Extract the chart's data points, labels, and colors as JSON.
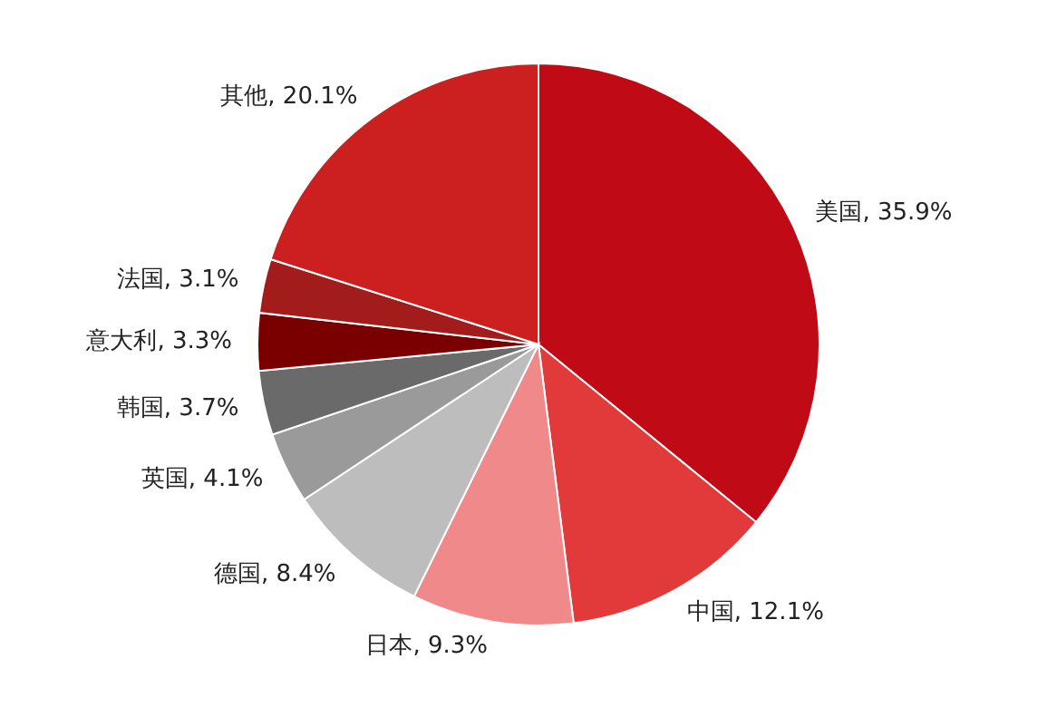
{
  "chart_data": {
    "type": "pie",
    "categories": [
      "美国",
      "中国",
      "日本",
      "德国",
      "英国",
      "韩国",
      "意大利",
      "法国",
      "其他"
    ],
    "values": [
      35.9,
      12.1,
      9.3,
      8.4,
      4.1,
      3.7,
      3.3,
      3.1,
      20.1
    ],
    "value_labels": [
      "35.9%",
      "12.1%",
      "9.3%",
      "8.4%",
      "4.1%",
      "3.7%",
      "3.3%",
      "3.1%",
      "20.1%"
    ],
    "colors": [
      "#c00a16",
      "#e23a3a",
      "#f08a8a",
      "#bdbdbd",
      "#9a9a9a",
      "#6a6a6a",
      "#7a0000",
      "#a31c1c",
      "#cc2020"
    ],
    "legend": false
  }
}
